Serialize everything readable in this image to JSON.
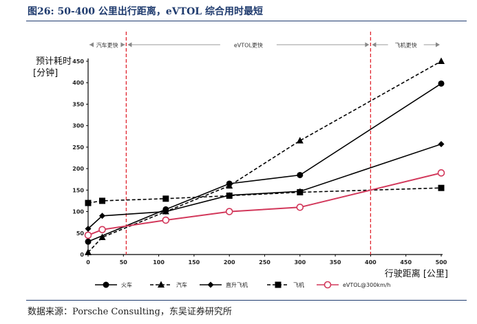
{
  "figure": {
    "title": "图26:  50-400 公里出行距离，eVTOL 综合用时最短",
    "source": "数据来源：Porsche Consulting，东吴证券研究所"
  },
  "chart_data": {
    "type": "line",
    "title": "",
    "ylabel": [
      "预计耗时",
      "[分钟]"
    ],
    "xlabel": "行驶距离 [公里]",
    "xlim": [
      0,
      500
    ],
    "ylim": [
      0,
      450
    ],
    "xticks": [
      "0",
      "50",
      "100",
      "150",
      "200",
      "250",
      "300",
      "350",
      "400",
      "450",
      "500"
    ],
    "yticks": [
      "0",
      "50",
      "100",
      "150",
      "200",
      "250",
      "300",
      "350",
      "400",
      "450"
    ],
    "grid": false,
    "legend_position": "bottom",
    "zones": {
      "boundaries": [
        54,
        400
      ],
      "labels": [
        "汽车更快",
        "eVTOL更快",
        "飞机更快"
      ],
      "color": "#e0242e"
    },
    "series": [
      {
        "name": "火车",
        "style": "solid",
        "marker": "circle",
        "color": "#000000",
        "points": [
          [
            0,
            30
          ],
          [
            110,
            105
          ],
          [
            200,
            165
          ],
          [
            300,
            185
          ],
          [
            500,
            398
          ]
        ]
      },
      {
        "name": "汽车",
        "style": "dashed",
        "marker": "triangle",
        "color": "#000000",
        "points": [
          [
            0,
            5
          ],
          [
            20,
            40
          ],
          [
            110,
            100
          ],
          [
            200,
            160
          ],
          [
            300,
            265
          ],
          [
            500,
            450
          ]
        ]
      },
      {
        "name": "直升飞机",
        "style": "solid",
        "marker": "diamond",
        "color": "#000000",
        "points": [
          [
            0,
            60
          ],
          [
            20,
            90
          ],
          [
            110,
            100
          ],
          [
            200,
            138
          ],
          [
            300,
            147
          ],
          [
            500,
            257
          ]
        ]
      },
      {
        "name": "飞机",
        "style": "dashed",
        "marker": "square",
        "color": "#000000",
        "points": [
          [
            0,
            120
          ],
          [
            20,
            125
          ],
          [
            110,
            130
          ],
          [
            200,
            137
          ],
          [
            300,
            145
          ],
          [
            500,
            155
          ]
        ]
      },
      {
        "name": "eVTOL@300km/h",
        "style": "solid",
        "marker": "open-circle",
        "color": "#d2375a",
        "points": [
          [
            0,
            45
          ],
          [
            20,
            58
          ],
          [
            110,
            80
          ],
          [
            200,
            100
          ],
          [
            300,
            110
          ],
          [
            500,
            190
          ]
        ]
      }
    ]
  }
}
